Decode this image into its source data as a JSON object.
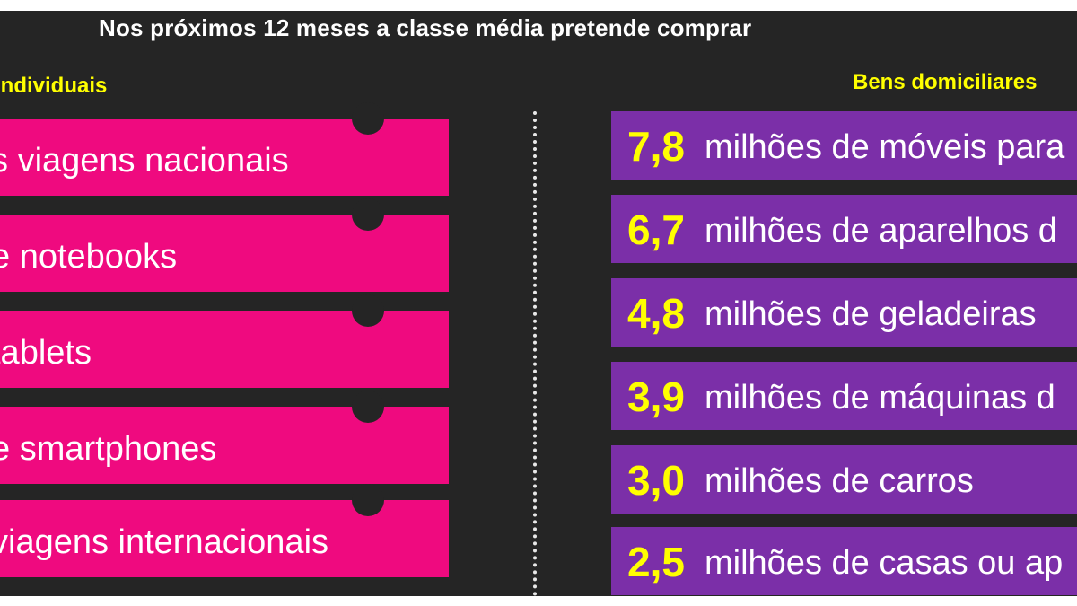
{
  "title": "Nos próximos 12 meses a classe média pretende comprar",
  "left_heading": "individuais",
  "right_heading": "Bens domiciliares",
  "individual_items": [
    {
      "label": "viagens nacionais",
      "prefix": "s "
    },
    {
      "label": "notebooks",
      "prefix": "e "
    },
    {
      "label": "tablets",
      "prefix": "  "
    },
    {
      "label": "smartphones",
      "prefix": "e "
    },
    {
      "label": "viagens internacionais",
      "prefix": "  "
    }
  ],
  "household_items": [
    {
      "value": "7,8",
      "text": "milhões de móveis para"
    },
    {
      "value": "6,7",
      "text": "milhões de aparelhos d"
    },
    {
      "value": "4,8",
      "text": "milhões de geladeiras"
    },
    {
      "value": "3,9",
      "text": "milhões de máquinas d"
    },
    {
      "value": "3,0",
      "text": "milhões de carros"
    },
    {
      "value": "2,5",
      "text": "milhões de casas ou ap"
    }
  ],
  "colors": {
    "background": "#252525",
    "pink": "#ef0a7f",
    "purple": "#7b2fa8",
    "yellow": "#ffff00",
    "white": "#ffffff"
  }
}
